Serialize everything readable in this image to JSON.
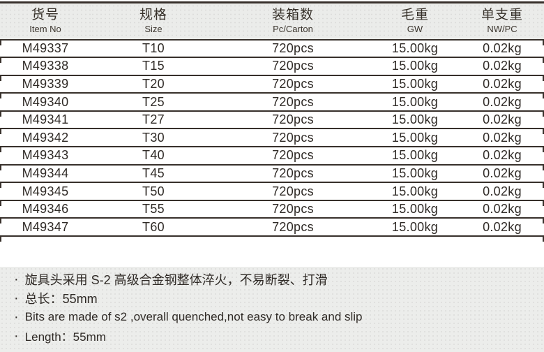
{
  "colors": {
    "line": "#37302b",
    "text": "#2f2a26",
    "header_bg": "#ebecea",
    "panel_bg": "#ecedeb",
    "row_bg": "#ffffff"
  },
  "table": {
    "columns": [
      {
        "zh": "货号",
        "en": "Item No"
      },
      {
        "zh": "规格",
        "en": "Size"
      },
      {
        "zh": "装箱数",
        "en": "Pc/Carton"
      },
      {
        "zh": "毛重",
        "en": "GW"
      },
      {
        "zh": "单支重",
        "en": "NW/PC"
      }
    ],
    "rows": [
      {
        "item_no": "M49337",
        "size": "T10",
        "pc_carton": "720pcs",
        "gw": "15.00kg",
        "nw_pc": "0.02kg"
      },
      {
        "item_no": "M49338",
        "size": "T15",
        "pc_carton": "720pcs",
        "gw": "15.00kg",
        "nw_pc": "0.02kg"
      },
      {
        "item_no": "M49339",
        "size": "T20",
        "pc_carton": "720pcs",
        "gw": "15.00kg",
        "nw_pc": "0.02kg"
      },
      {
        "item_no": "M49340",
        "size": "T25",
        "pc_carton": "720pcs",
        "gw": "15.00kg",
        "nw_pc": "0.02kg"
      },
      {
        "item_no": "M49341",
        "size": "T27",
        "pc_carton": "720pcs",
        "gw": "15.00kg",
        "nw_pc": "0.02kg"
      },
      {
        "item_no": "M49342",
        "size": "T30",
        "pc_carton": "720pcs",
        "gw": "15.00kg",
        "nw_pc": "0.02kg"
      },
      {
        "item_no": "M49343",
        "size": "T40",
        "pc_carton": "720pcs",
        "gw": "15.00kg",
        "nw_pc": "0.02kg"
      },
      {
        "item_no": "M49344",
        "size": "T45",
        "pc_carton": "720pcs",
        "gw": "15.00kg",
        "nw_pc": "0.02kg"
      },
      {
        "item_no": "M49345",
        "size": "T50",
        "pc_carton": "720pcs",
        "gw": "15.00kg",
        "nw_pc": "0.02kg"
      },
      {
        "item_no": "M49346",
        "size": "T55",
        "pc_carton": "720pcs",
        "gw": "15.00kg",
        "nw_pc": "0.02kg"
      },
      {
        "item_no": "M49347",
        "size": "T60",
        "pc_carton": "720pcs",
        "gw": "15.00kg",
        "nw_pc": "0.02kg"
      }
    ]
  },
  "notes": {
    "bullet": "·",
    "items": [
      "旋具头采用 S-2 高级合金钢整体淬火，不易断裂、打滑",
      "总长：55mm",
      "Bits are made of s2 ,overall quenched,not easy to break and slip",
      "Length：55mm"
    ]
  }
}
